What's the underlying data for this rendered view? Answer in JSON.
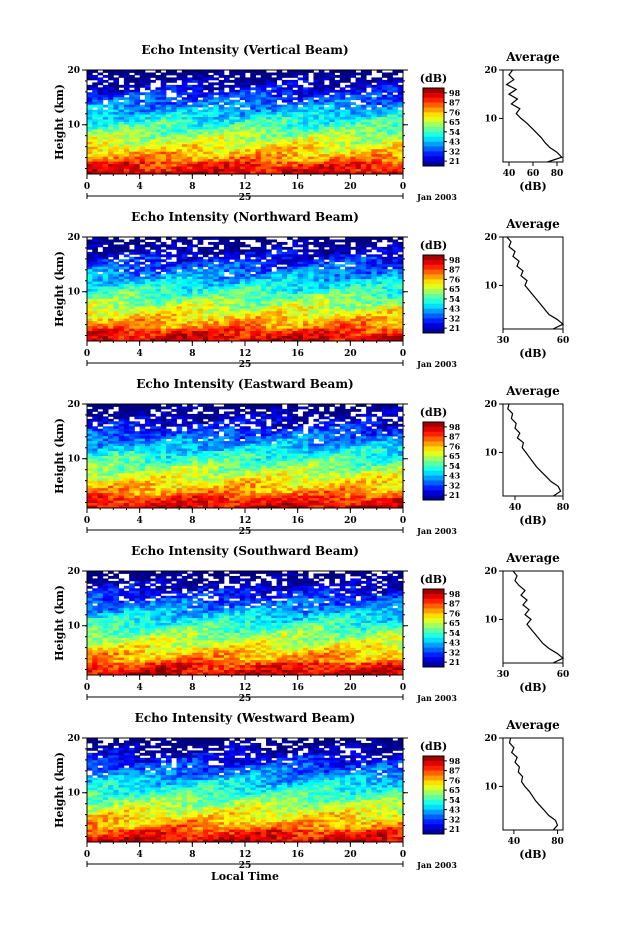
{
  "figure": {
    "xlabel": "Local Time",
    "ylabel": "Height (km)",
    "date_label": "Jan 2003",
    "day_label": "25",
    "unit_label": "(dB)",
    "avg_title": "Average",
    "avg_xlabel": "(dB)"
  },
  "chart_data": [
    {
      "type": "heatmap",
      "title": "Echo Intensity (Vertical Beam)",
      "xlabel": "Local Time",
      "ylabel": "Height (km)",
      "x_ticks": [
        "0",
        "4",
        "8",
        "12",
        "16",
        "20",
        "0"
      ],
      "xlim": [
        0,
        24
      ],
      "y_ticks": [
        "10",
        "20"
      ],
      "ylim": [
        1,
        20
      ],
      "colorbar": {
        "label": "(dB)",
        "ticks": [
          "98",
          "87",
          "76",
          "65",
          "54",
          "43",
          "32",
          "21"
        ],
        "range": [
          21,
          98
        ]
      },
      "average": {
        "title": "Average",
        "xlabel": "(dB)",
        "x_ticks": [
          "40",
          "60",
          "80"
        ],
        "xlim": [
          35,
          85
        ],
        "profile": [
          [
            1,
            72
          ],
          [
            2,
            84
          ],
          [
            3,
            80
          ],
          [
            4,
            74
          ],
          [
            5,
            70
          ],
          [
            6,
            67
          ],
          [
            7,
            63
          ],
          [
            8,
            59
          ],
          [
            9,
            55
          ],
          [
            10,
            50
          ],
          [
            11,
            46
          ],
          [
            12,
            49
          ],
          [
            13,
            42
          ],
          [
            14,
            47
          ],
          [
            15,
            40
          ],
          [
            16,
            46
          ],
          [
            17,
            38
          ],
          [
            18,
            44
          ],
          [
            19,
            40
          ],
          [
            20,
            43
          ]
        ]
      }
    },
    {
      "type": "heatmap",
      "title": "Echo Intensity (Northward Beam)",
      "xlabel": "Local Time",
      "ylabel": "Height (km)",
      "x_ticks": [
        "0",
        "4",
        "8",
        "12",
        "16",
        "20",
        "0"
      ],
      "xlim": [
        0,
        24
      ],
      "y_ticks": [
        "10",
        "20"
      ],
      "ylim": [
        1,
        20
      ],
      "colorbar": {
        "label": "(dB)",
        "ticks": [
          "98",
          "87",
          "76",
          "65",
          "54",
          "43",
          "32",
          "21"
        ],
        "range": [
          21,
          98
        ]
      },
      "average": {
        "title": "Average",
        "xlabel": "(dB)",
        "x_ticks": [
          "30",
          "60"
        ],
        "xlim": [
          30,
          60
        ],
        "profile": [
          [
            1,
            55
          ],
          [
            2,
            60
          ],
          [
            3,
            57
          ],
          [
            4,
            53
          ],
          [
            5,
            51
          ],
          [
            6,
            49
          ],
          [
            7,
            47
          ],
          [
            8,
            45
          ],
          [
            9,
            43
          ],
          [
            10,
            41
          ],
          [
            11,
            42
          ],
          [
            12,
            39
          ],
          [
            13,
            40
          ],
          [
            14,
            37
          ],
          [
            15,
            38
          ],
          [
            16,
            35
          ],
          [
            17,
            36
          ],
          [
            18,
            33
          ],
          [
            19,
            34
          ],
          [
            20,
            32
          ]
        ]
      }
    },
    {
      "type": "heatmap",
      "title": "Echo Intensity (Eastward Beam)",
      "xlabel": "Local Time",
      "ylabel": "Height (km)",
      "x_ticks": [
        "0",
        "4",
        "8",
        "12",
        "16",
        "20",
        "0"
      ],
      "xlim": [
        0,
        24
      ],
      "y_ticks": [
        "10",
        "20"
      ],
      "ylim": [
        1,
        20
      ],
      "colorbar": {
        "label": "(dB)",
        "ticks": [
          "98",
          "87",
          "76",
          "65",
          "54",
          "43",
          "32",
          "21"
        ],
        "range": [
          21,
          98
        ]
      },
      "average": {
        "title": "Average",
        "xlabel": "(dB)",
        "x_ticks": [
          "40",
          "80"
        ],
        "xlim": [
          30,
          80
        ],
        "profile": [
          [
            1,
            72
          ],
          [
            2,
            78
          ],
          [
            3,
            76
          ],
          [
            4,
            70
          ],
          [
            5,
            66
          ],
          [
            6,
            62
          ],
          [
            7,
            58
          ],
          [
            8,
            55
          ],
          [
            9,
            52
          ],
          [
            10,
            49
          ],
          [
            11,
            46
          ],
          [
            12,
            47
          ],
          [
            13,
            42
          ],
          [
            14,
            44
          ],
          [
            15,
            40
          ],
          [
            16,
            41
          ],
          [
            17,
            37
          ],
          [
            18,
            38
          ],
          [
            19,
            34
          ],
          [
            20,
            35
          ]
        ]
      }
    },
    {
      "type": "heatmap",
      "title": "Echo Intensity (Southward Beam)",
      "xlabel": "Local Time",
      "ylabel": "Height (km)",
      "x_ticks": [
        "0",
        "4",
        "8",
        "12",
        "16",
        "20",
        "0"
      ],
      "xlim": [
        0,
        24
      ],
      "y_ticks": [
        "10",
        "20"
      ],
      "ylim": [
        1,
        20
      ],
      "colorbar": {
        "label": "(dB)",
        "ticks": [
          "98",
          "87",
          "76",
          "65",
          "54",
          "43",
          "32",
          "21"
        ],
        "range": [
          21,
          98
        ]
      },
      "average": {
        "title": "Average",
        "xlabel": "(dB)",
        "x_ticks": [
          "30",
          "60"
        ],
        "xlim": [
          30,
          60
        ],
        "profile": [
          [
            1,
            55
          ],
          [
            2,
            60
          ],
          [
            3,
            57
          ],
          [
            4,
            53
          ],
          [
            5,
            50
          ],
          [
            6,
            48
          ],
          [
            7,
            46
          ],
          [
            8,
            44
          ],
          [
            9,
            42
          ],
          [
            10,
            44
          ],
          [
            11,
            41
          ],
          [
            12,
            43
          ],
          [
            13,
            40
          ],
          [
            14,
            42
          ],
          [
            15,
            39
          ],
          [
            16,
            41
          ],
          [
            17,
            38
          ],
          [
            18,
            36
          ],
          [
            19,
            37
          ],
          [
            20,
            35
          ]
        ]
      }
    },
    {
      "type": "heatmap",
      "title": "Echo Intensity (Westward Beam)",
      "xlabel": "Local Time",
      "ylabel": "Height (km)",
      "x_ticks": [
        "0",
        "4",
        "8",
        "12",
        "16",
        "20",
        "0"
      ],
      "xlim": [
        0,
        24
      ],
      "y_ticks": [
        "10",
        "20"
      ],
      "ylim": [
        1,
        20
      ],
      "colorbar": {
        "label": "(dB)",
        "ticks": [
          "98",
          "87",
          "76",
          "65",
          "54",
          "43",
          "32",
          "21"
        ],
        "range": [
          21,
          98
        ]
      },
      "average": {
        "title": "Average",
        "xlabel": "(dB)",
        "x_ticks": [
          "40",
          "80"
        ],
        "xlim": [
          30,
          85
        ],
        "profile": [
          [
            1,
            76
          ],
          [
            2,
            80
          ],
          [
            3,
            78
          ],
          [
            4,
            72
          ],
          [
            5,
            68
          ],
          [
            6,
            64
          ],
          [
            7,
            60
          ],
          [
            8,
            57
          ],
          [
            9,
            54
          ],
          [
            10,
            50
          ],
          [
            11,
            47
          ],
          [
            12,
            48
          ],
          [
            13,
            44
          ],
          [
            14,
            45
          ],
          [
            15,
            41
          ],
          [
            16,
            43
          ],
          [
            17,
            38
          ],
          [
            18,
            40
          ],
          [
            19,
            36
          ],
          [
            20,
            37
          ]
        ]
      }
    }
  ]
}
